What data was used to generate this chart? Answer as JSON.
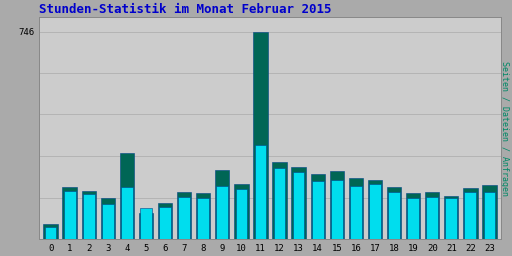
{
  "title": "Stunden-Statistik im Monat Februar 2015",
  "title_color": "#0000cc",
  "title_fontsize": 9,
  "ylabel_right": "Seiten / Dateien / Anfragen",
  "hours": [
    0,
    1,
    2,
    3,
    4,
    5,
    6,
    7,
    8,
    9,
    10,
    11,
    12,
    13,
    14,
    15,
    16,
    17,
    18,
    19,
    20,
    21,
    22,
    23
  ],
  "seiten_values": [
    55,
    190,
    175,
    150,
    310,
    95,
    130,
    170,
    165,
    250,
    200,
    746,
    280,
    260,
    235,
    245,
    220,
    215,
    190,
    165,
    170,
    155,
    185,
    195
  ],
  "anfragen_values": [
    45,
    175,
    162,
    128,
    190,
    112,
    118,
    152,
    150,
    192,
    182,
    340,
    255,
    242,
    210,
    215,
    192,
    198,
    172,
    148,
    152,
    148,
    172,
    172
  ],
  "bar_color_seiten": "#006655",
  "bar_color_anfragen": "#00ddee",
  "bar_edge_color": "#004488",
  "background_color": "#aaaaaa",
  "plot_bg_color": "#cccccc",
  "ylim": [
    0,
    800
  ],
  "figsize": [
    5.12,
    2.56
  ],
  "dpi": 100
}
